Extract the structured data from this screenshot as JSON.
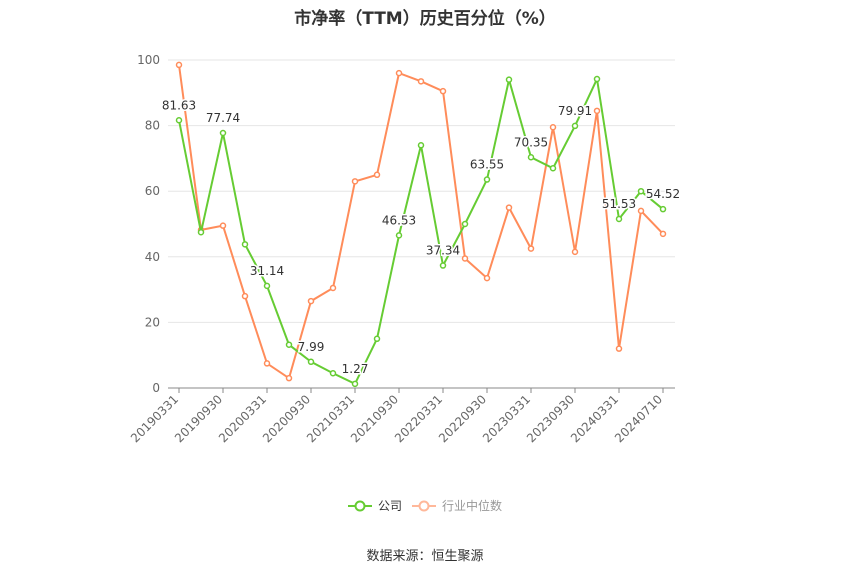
{
  "chart_data": {
    "type": "line",
    "title": "市净率（TTM）历史百分位（%）",
    "ylim": [
      0,
      100
    ],
    "yticks": [
      0,
      20,
      40,
      60,
      80,
      100
    ],
    "grid": true,
    "legend_position": "bottom",
    "x_tick_labels": [
      "20190331",
      "20190930",
      "20200331",
      "20200930",
      "20210331",
      "20210930",
      "20220331",
      "20220930",
      "20230331",
      "20230930",
      "20240331",
      "20240710"
    ],
    "series": [
      {
        "name": "公司",
        "color": "#66cc33",
        "values": [
          81.63,
          47.5,
          77.74,
          43.8,
          31.14,
          13.2,
          7.99,
          4.5,
          1.27,
          15.0,
          46.53,
          74.0,
          37.34,
          50.0,
          63.55,
          94.0,
          70.35,
          67.0,
          79.91,
          94.2,
          51.53,
          60.0,
          54.52
        ],
        "labels": [
          "81.63",
          "",
          "77.74",
          "",
          "31.14",
          "",
          "7.99",
          "",
          "1.27",
          "",
          "46.53",
          "",
          "37.34",
          "",
          "63.55",
          "",
          "70.35",
          "",
          "79.91",
          "",
          "51.53",
          "",
          "54.52"
        ]
      },
      {
        "name": "行业中位数",
        "color": "#ff8c5a",
        "values": [
          98.5,
          48.2,
          49.5,
          28.0,
          7.5,
          3.0,
          26.5,
          30.5,
          63.0,
          65.0,
          96.0,
          93.5,
          90.5,
          39.5,
          33.5,
          55.0,
          42.5,
          79.5,
          41.5,
          84.5,
          12.0,
          54.0,
          47.0
        ]
      }
    ]
  },
  "legend": {
    "company_label": "公司",
    "industry_label": "行业中位数"
  },
  "source_text": "数据来源：恒生聚源"
}
